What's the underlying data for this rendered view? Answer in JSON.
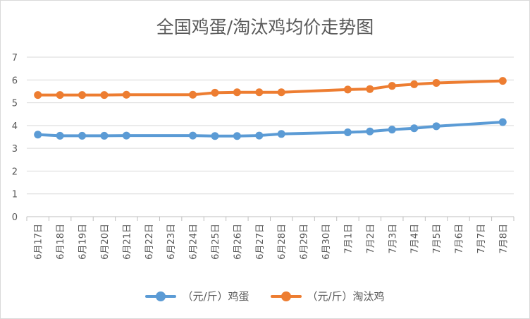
{
  "chart_data": {
    "type": "line",
    "title": "全国鸡蛋/淘汰鸡均价走势图",
    "categories": [
      "6月17日",
      "6月18日",
      "6月19日",
      "6月20日",
      "6月21日",
      "6月22日",
      "6月23日",
      "6月24日",
      "6月25日",
      "6月26日",
      "6月27日",
      "6月28日",
      "6月29日",
      "6月30日",
      "7月1日",
      "7月2日",
      "7月3日",
      "7月4日",
      "7月5日",
      "7月6日",
      "7月7日",
      "7月8日"
    ],
    "series": [
      {
        "name": "（元/斤）鸡蛋",
        "color": "#5b9bd5",
        "values": [
          3.6,
          3.55,
          3.55,
          3.55,
          3.56,
          null,
          null,
          3.56,
          3.54,
          3.54,
          3.56,
          3.63,
          null,
          null,
          3.7,
          3.74,
          3.82,
          3.88,
          3.97,
          null,
          null,
          4.15
        ]
      },
      {
        "name": "（元/斤）淘汰鸡",
        "color": "#ed7d31",
        "values": [
          5.34,
          5.34,
          5.34,
          5.34,
          5.35,
          null,
          null,
          5.35,
          5.44,
          5.46,
          5.46,
          5.46,
          null,
          null,
          5.58,
          5.6,
          5.74,
          5.81,
          5.87,
          null,
          null,
          5.96
        ]
      }
    ],
    "y_ticks": [
      "0",
      "1",
      "2",
      "3",
      "4",
      "5",
      "6",
      "7"
    ],
    "ylim": [
      0,
      7
    ],
    "grid": true,
    "legend_position": "bottom"
  }
}
